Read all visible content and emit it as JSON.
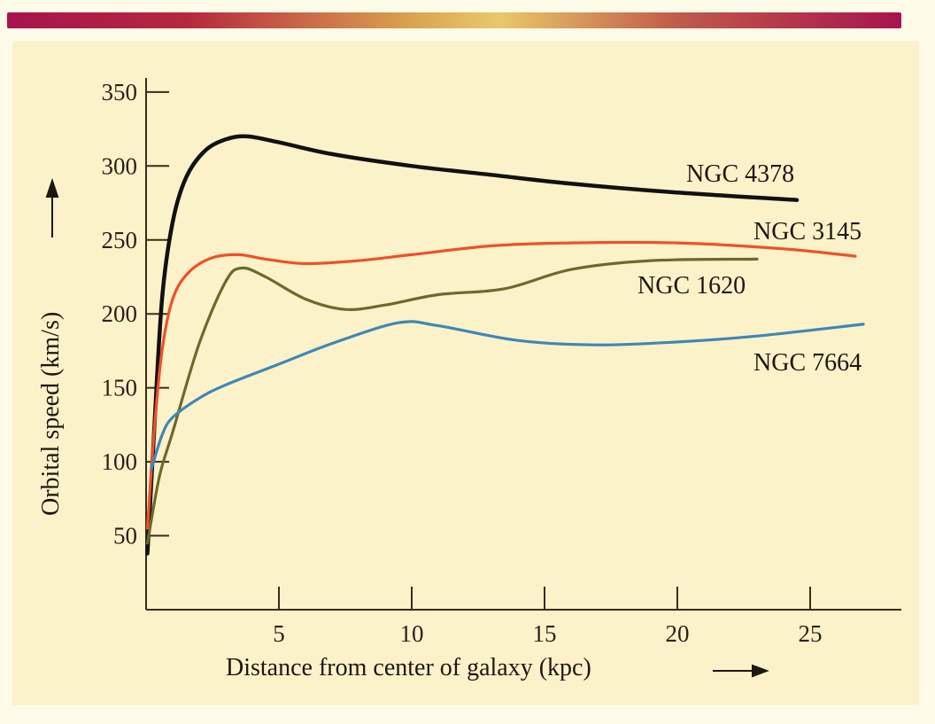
{
  "chart_data": {
    "type": "line",
    "title": "",
    "xlabel": "Distance from center of  galaxy (kpc)",
    "ylabel": "Orbital speed (km/s)",
    "xlim": [
      0,
      28.5
    ],
    "ylim": [
      0,
      350
    ],
    "x_ticks": [
      5,
      10,
      15,
      20,
      25
    ],
    "y_ticks": [
      50,
      100,
      150,
      200,
      250,
      300,
      350
    ],
    "grid": false,
    "legend": "inline labels at right end of each curve",
    "series": [
      {
        "name": "NGC 4378",
        "color": "#111111",
        "x": [
          0.05,
          0.3,
          0.6,
          1.0,
          1.5,
          2.2,
          3.0,
          3.8,
          5.0,
          7.0,
          10.0,
          13.0,
          16.0,
          20.0,
          24.5
        ],
        "y": [
          38,
          120,
          210,
          262,
          292,
          310,
          318,
          320,
          316,
          308,
          300,
          294,
          288,
          282,
          277
        ]
      },
      {
        "name": "NGC 3145",
        "color": "#f0502a",
        "x": [
          0.05,
          0.3,
          0.6,
          1.0,
          1.6,
          2.5,
          3.5,
          4.5,
          6.0,
          8.0,
          10.0,
          13.0,
          16.0,
          20.0,
          24.0,
          26.7
        ],
        "y": [
          55,
          120,
          175,
          210,
          228,
          238,
          240,
          237,
          234,
          236,
          240,
          246,
          248,
          248,
          244,
          239
        ]
      },
      {
        "name": "NGC 1620",
        "color": "#6b6a2c",
        "x": [
          0.05,
          0.5,
          1.0,
          2.0,
          3.0,
          3.6,
          4.5,
          6.0,
          7.5,
          9.0,
          11.0,
          13.5,
          16.0,
          19.0,
          23.0
        ],
        "y": [
          45,
          90,
          120,
          180,
          222,
          231,
          225,
          210,
          203,
          206,
          213,
          217,
          230,
          236,
          237
        ]
      },
      {
        "name": "NGC 7664",
        "color": "#3e87b8",
        "x": [
          0.2,
          0.6,
          1.0,
          2.0,
          3.0,
          5.0,
          7.0,
          9.5,
          11.0,
          14.0,
          17.0,
          20.0,
          23.0,
          27.0
        ],
        "y": [
          95,
          118,
          130,
          143,
          152,
          166,
          180,
          194,
          192,
          182,
          179,
          181,
          185,
          193
        ]
      }
    ]
  }
}
